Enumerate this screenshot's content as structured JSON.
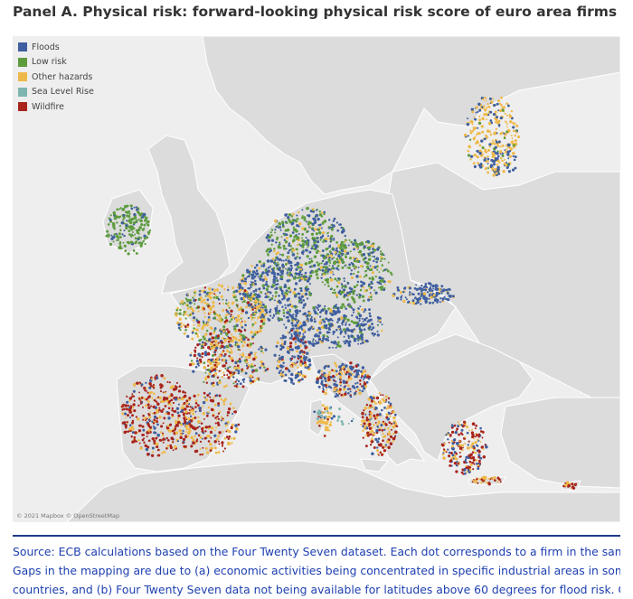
{
  "title": "Panel A. Physical risk: forward-looking physical risk score of euro area firms",
  "legend": {
    "items": [
      {
        "label": "Floods",
        "color": "#3f5f9e"
      },
      {
        "label": "Low risk",
        "color": "#5d9b3c"
      },
      {
        "label": "Other hazards",
        "color": "#eeb94a"
      },
      {
        "label": "Sea Level Rise",
        "color": "#7fb5b0"
      },
      {
        "label": "Wildfire",
        "color": "#a8241c"
      }
    ]
  },
  "attribution": "© 2021 Mapbox © OpenStreetMap",
  "source": {
    "lines": [
      "Source: ECB calculations based on the Four Twenty Seven dataset. Each dot corresponds to a firm in the sample.",
      "Gaps in the mapping are due to (a) economic activities being concentrated in specific industrial areas in some",
      "countries, and (b) Four Twenty Seven data not being available for latitudes above 60 degrees for flood risk. Other"
    ]
  },
  "colors": {
    "sea": "#eeeeee",
    "land": "#dcdcdc",
    "border": "#ffffff",
    "rule": "#1e3a8a",
    "source_text": "#1e40af"
  }
}
